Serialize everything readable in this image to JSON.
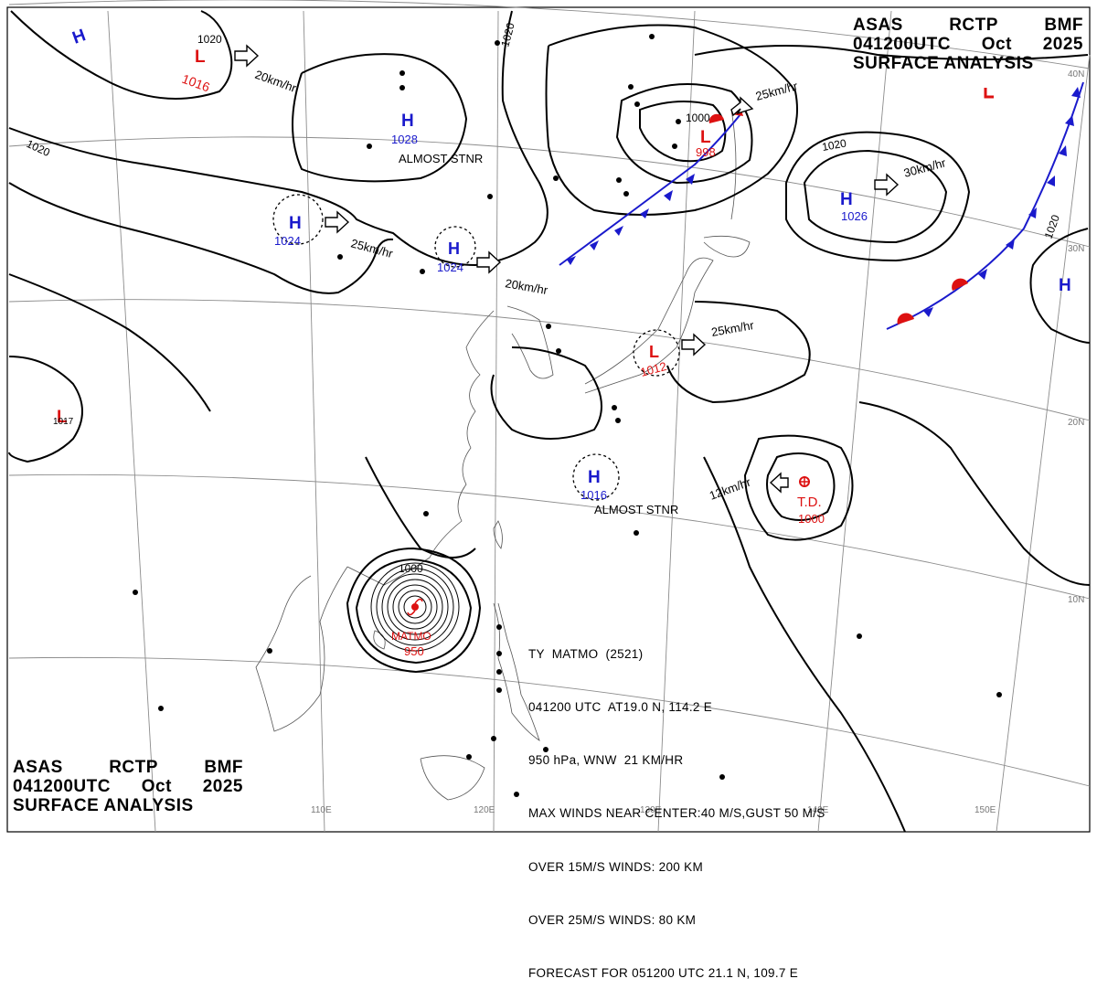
{
  "header": {
    "line1": [
      "ASAS",
      "RCTP",
      "BMF"
    ],
    "line2": [
      "041200UTC",
      "Oct",
      "2025"
    ],
    "line3": "SURFACE ANALYSIS"
  },
  "colors": {
    "high": "#1a1acc",
    "low": "#dd1111",
    "isobar": "#000000",
    "grid": "#8c8c8c",
    "coast": "#555555"
  },
  "lon_labels": [
    "110E",
    "120E",
    "130E",
    "140E",
    "150E"
  ],
  "lat_labels": [
    "40N",
    "30N",
    "20N",
    "10N"
  ],
  "isobar_labels": [
    "1020",
    "1020",
    "1020",
    "1020",
    "1020",
    "1000",
    "1000"
  ],
  "pressure_systems": [
    {
      "type": "H",
      "value": "1028",
      "note": "ALMOST STNR"
    },
    {
      "type": "H",
      "value": "1024"
    },
    {
      "type": "H",
      "value": "1024"
    },
    {
      "type": "H",
      "value": "1026",
      "speed": "30km/hr"
    },
    {
      "type": "H",
      "value": "1016",
      "note": "ALMOST STNR"
    },
    {
      "type": "L",
      "value": "1016",
      "speed": "20km/hr"
    },
    {
      "type": "L",
      "value": "998",
      "speed": "25km/hr"
    },
    {
      "type": "L",
      "value": "1012",
      "speed": "25km/hr"
    },
    {
      "type": "L",
      "value": "1017"
    },
    {
      "type": "T.D.",
      "value": "1000",
      "speed": "12km/hr"
    },
    {
      "type": "TY",
      "name": "MATMO",
      "value": "950"
    }
  ],
  "speed_labels": [
    "20km/hr",
    "25km/hr",
    "20km/hr"
  ],
  "storm_statement": {
    "lines": [
      "TY  MATMO  (2521)",
      "041200 UTC  AT19.0 N, 114.2 E",
      "950 hPa, WNW  21 KM/HR",
      "MAX WINDS NEAR CENTER:40 M/S,GUST 50 M/S",
      "OVER 15M/S WINDS: 200 KM",
      "OVER 25M/S WINDS: 80 KM",
      "FORECAST FOR 051200 UTC 21.1 N, 109.7 E"
    ]
  }
}
